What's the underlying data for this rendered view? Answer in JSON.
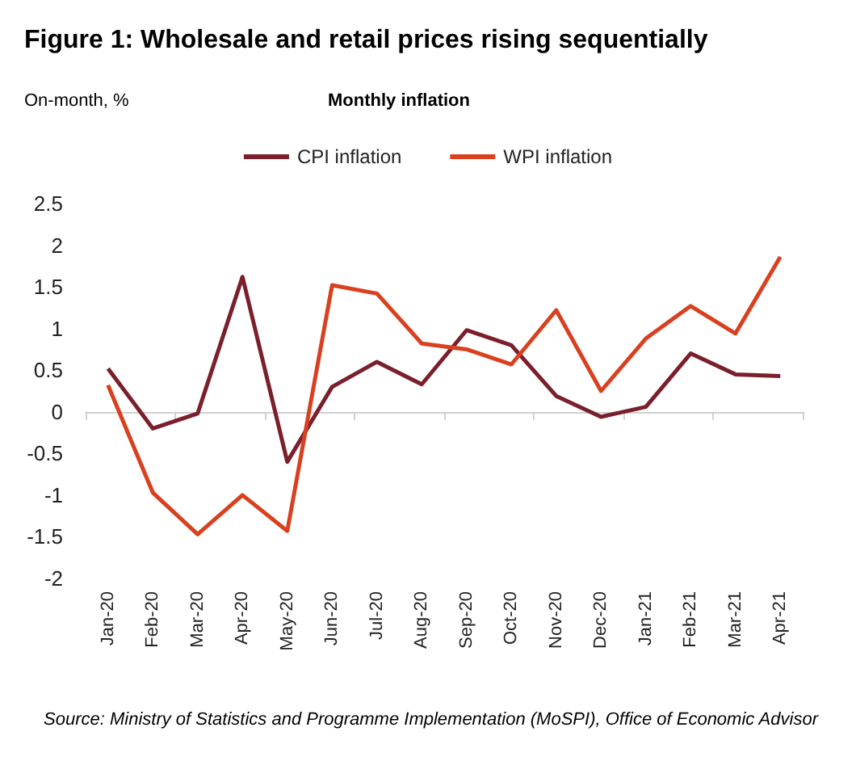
{
  "chart_data": {
    "type": "line",
    "title": "Figure 1: Wholesale and retail prices rising sequentially",
    "subtitle": "Monthly inflation",
    "ylabel": "On-month, %",
    "categories": [
      "Jan-20",
      "Feb-20",
      "Mar-20",
      "Apr-20",
      "May-20",
      "Jun-20",
      "Jul-20",
      "Aug-20",
      "Sep-20",
      "Oct-20",
      "Nov-20",
      "Dec-20",
      "Jan-21",
      "Feb-21",
      "Mar-21",
      "Apr-21"
    ],
    "series": [
      {
        "name": "CPI inflation",
        "color": "#7a1f2b",
        "values": [
          0.52,
          -0.2,
          -0.02,
          1.62,
          -0.6,
          0.3,
          0.6,
          0.33,
          0.98,
          0.8,
          0.19,
          -0.06,
          0.06,
          0.7,
          0.45,
          0.43
        ]
      },
      {
        "name": "WPI inflation",
        "color": "#d9401f",
        "values": [
          0.32,
          -0.97,
          -1.47,
          -1.0,
          -1.43,
          1.52,
          1.42,
          0.82,
          0.75,
          0.57,
          1.22,
          0.25,
          0.88,
          1.27,
          0.94,
          1.86
        ]
      }
    ],
    "ylim": [
      -2,
      2.5
    ],
    "yticks": [
      -2,
      -1.5,
      -1,
      -0.5,
      0,
      0.5,
      1,
      1.5,
      2,
      2.5
    ],
    "legend": "top",
    "marker": "none",
    "line_style": "solid",
    "annotations": [
      "Source: Ministry of Statistics and Programme Implementation (MoSPI), Office of Economic Advisor"
    ]
  }
}
